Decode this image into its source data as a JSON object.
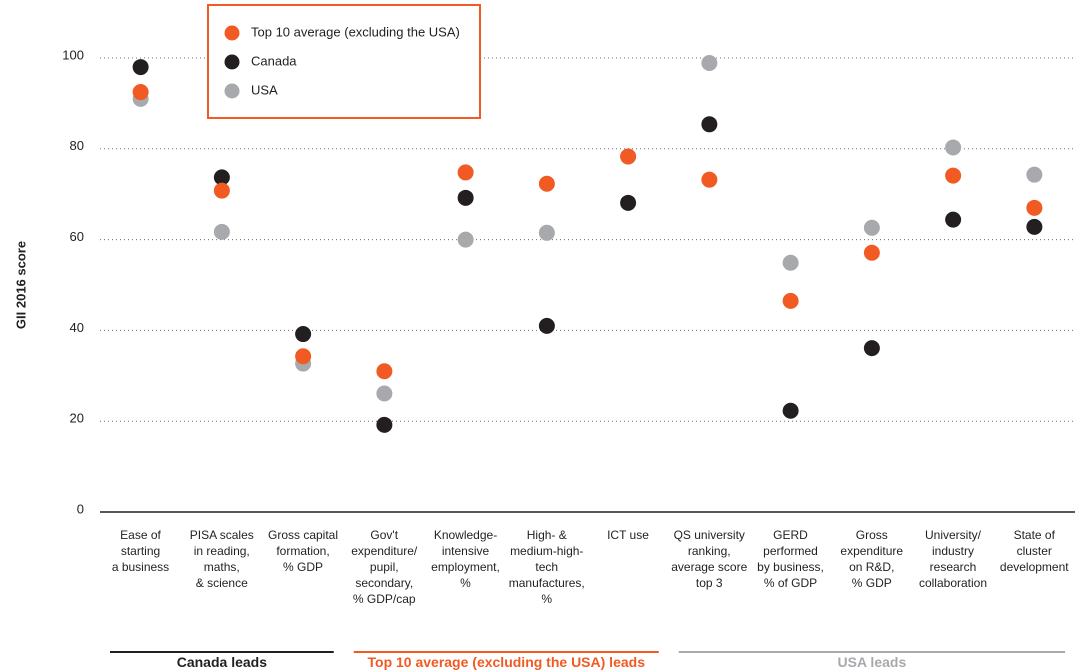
{
  "chart_data": {
    "type": "scatter",
    "y_label": "GII 2016 score",
    "categories": [
      "Ease of\nstarting\na business",
      "PISA scales\nin reading,\nmaths,\n& science",
      "Gross capital\nformation,\n% GDP",
      "Gov't\nexpenditure/\npupil,\nsecondary,\n% GDP/cap",
      "Knowledge-\nintensive\nemployment,\n%",
      "High- &\nmedium-high-\ntech\nmanufactures, %",
      "ICT use",
      "QS university\nranking,\naverage score\ntop 3",
      "GERD\nperformed\nby business,\n% of GDP",
      "Gross\nexpenditure\non R&D,\n% GDP",
      "University/\nindustry\nresearch\ncollaboration",
      "State of\ncluster\ndevelopment"
    ],
    "series": [
      {
        "name": "Top 10 average (excluding the USA)",
        "color": "#f15a22",
        "values": [
          92.5,
          70.8,
          34.3,
          31,
          74.8,
          72.3,
          78.3,
          73.2,
          46.5,
          57.1,
          74.1,
          67
        ]
      },
      {
        "name": "Canada",
        "color": "#231f20",
        "values": [
          98,
          73.7,
          39.2,
          19.2,
          69.2,
          41,
          68.1,
          85.4,
          22.3,
          36.1,
          64.4,
          62.8
        ]
      },
      {
        "name": "USA",
        "color": "#a7a9ac",
        "values": [
          91,
          61.7,
          32.7,
          26.1,
          60,
          61.5,
          78.3,
          98.9,
          54.9,
          62.6,
          80.3,
          74.3
        ]
      }
    ],
    "groups": [
      {
        "label": "Canada leads",
        "color": "#231f20",
        "from": 0,
        "to": 2
      },
      {
        "label": "Top 10 average (excluding the USA) leads",
        "color": "#f15a22",
        "from": 3,
        "to": 6
      },
      {
        "label": "USA leads",
        "color": "#a7a9ac",
        "from": 7,
        "to": 11
      }
    ],
    "ylim": [
      0,
      100
    ],
    "yticks": [
      0,
      20,
      40,
      60,
      80,
      100
    ],
    "grid": true,
    "legend": "top-left"
  }
}
